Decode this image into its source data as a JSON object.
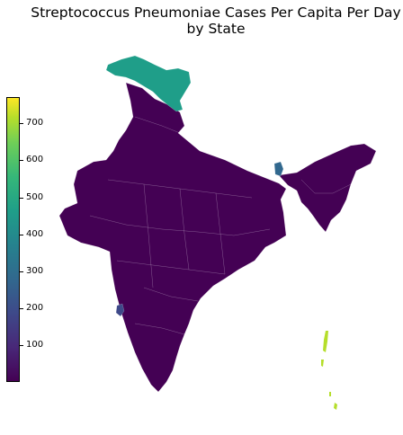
{
  "title": {
    "line1": "Streptococcus Pneumoniae Cases Per Capita Per Day",
    "line2": "by State"
  },
  "colorbar": {
    "ticks": [
      "100",
      "200",
      "300",
      "400",
      "500",
      "600",
      "700"
    ],
    "tick_values": [
      100,
      200,
      300,
      400,
      500,
      600,
      700
    ],
    "min": 0,
    "max": 770,
    "colormap": "viridis"
  },
  "regions": [
    {
      "name": "Jammu and Kashmir",
      "value": 480,
      "color": "#1f9e89"
    },
    {
      "name": "Tripura / Northeast",
      "value": 300,
      "color": "#31688e"
    },
    {
      "name": "Goa",
      "value": 190,
      "color": "#3e4989"
    },
    {
      "name": "Andaman and Nicobar Islands",
      "value": 650,
      "color": "#b5de2b"
    },
    {
      "name": "Other states",
      "value": 10,
      "color": "#440154"
    }
  ]
}
